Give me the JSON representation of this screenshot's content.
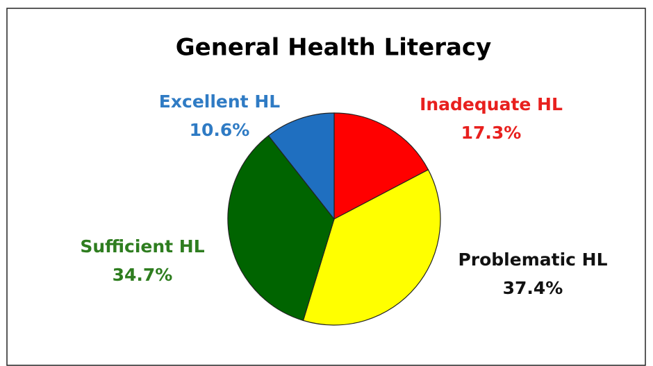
{
  "chart_data": {
    "type": "pie",
    "title": "General  Health Literacy",
    "categories": [
      "Inadequate HL",
      "Problematic HL",
      "Sufficient HL",
      "Excellent HL"
    ],
    "values": [
      17.3,
      37.4,
      34.7,
      10.6
    ],
    "value_labels": [
      "17.3%",
      "37.4%",
      "34.7%",
      "10.6%"
    ],
    "colors": [
      "#ff0000",
      "#ffff00",
      "#006400",
      "#1f6fc0"
    ],
    "label_colors": [
      "#e8201e",
      "#111111",
      "#2e7d1f",
      "#2f7bc4"
    ]
  }
}
